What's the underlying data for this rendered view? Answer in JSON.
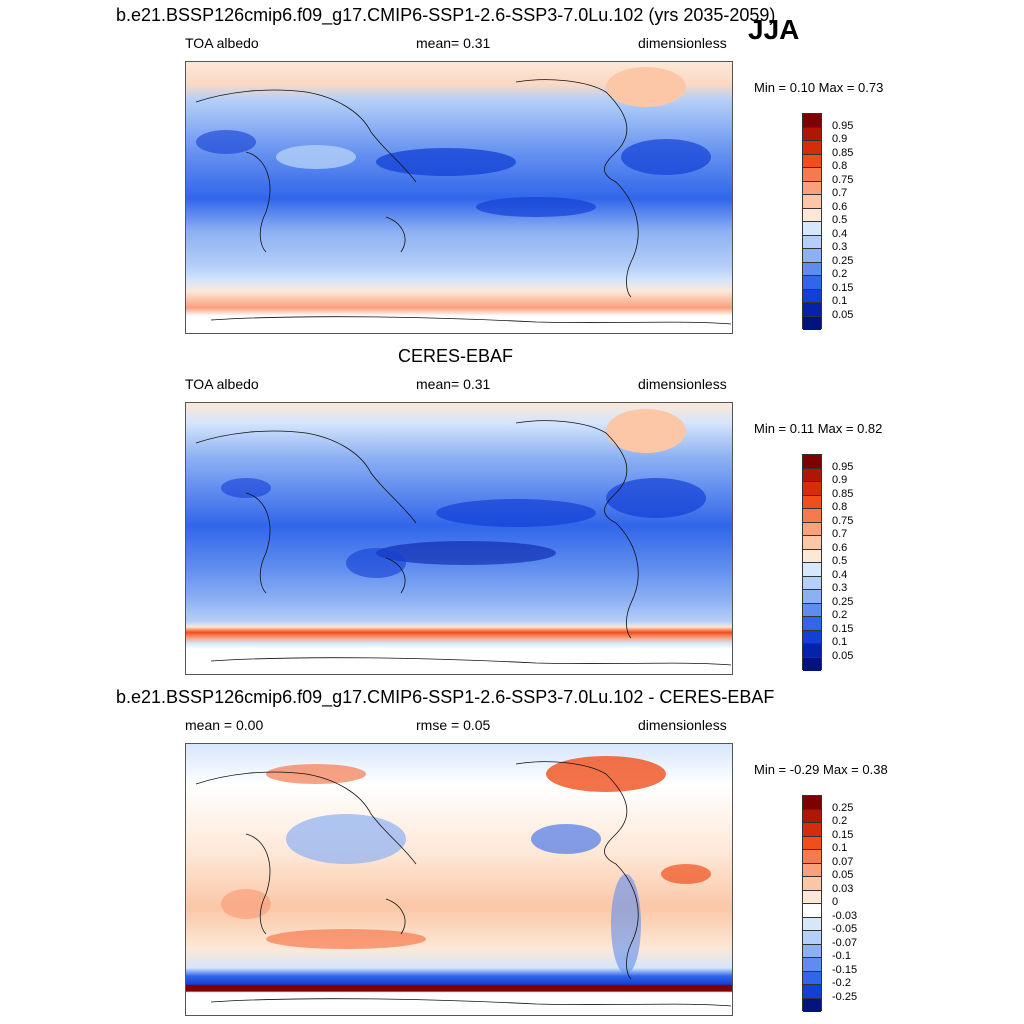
{
  "season": "JJA",
  "colorbar_abs": {
    "labels": [
      "0.95",
      "0.9",
      "0.85",
      "0.8",
      "0.75",
      "0.7",
      "0.6",
      "0.5",
      "0.4",
      "0.3",
      "0.25",
      "0.2",
      "0.15",
      "0.1",
      "0.05"
    ],
    "colors": [
      "#7f0000",
      "#b01605",
      "#d52c0c",
      "#f04f1c",
      "#f57a4e",
      "#f9a07c",
      "#fbc7a7",
      "#fde8d7",
      "#d6e6fb",
      "#b4cff8",
      "#8db0f3",
      "#5f8def",
      "#3166ea",
      "#1240d6",
      "#0722aa",
      "#001480"
    ]
  },
  "colorbar_diff": {
    "labels": [
      "0.25",
      "0.2",
      "0.15",
      "0.1",
      "0.07",
      "0.05",
      "0.03",
      "0",
      "-0.03",
      "-0.05",
      "-0.07",
      "-0.1",
      "-0.15",
      "-0.2",
      "-0.25"
    ],
    "colors": [
      "#7f0000",
      "#b01605",
      "#d52c0c",
      "#f04f1c",
      "#f57a4e",
      "#f9a07c",
      "#fbc7a7",
      "#fde8d7",
      "#ffffff",
      "#d6e6fb",
      "#b4cff8",
      "#8db0f3",
      "#5f8def",
      "#3166ea",
      "#1240d6",
      "#001480"
    ]
  },
  "panels": [
    {
      "title": "b.e21.BSSP126cmip6.f09_g17.CMIP6-SSP1-2.6-SSP3-7.0Lu.102 (yrs 2035-2059)",
      "left_label": "TOA albedo",
      "center_label": "mean=   0.31",
      "right_label": "dimensionless",
      "minmax": "Min =   0.10 Max =   0.73"
    },
    {
      "title": "CERES-EBAF",
      "left_label": "TOA albedo",
      "center_label": "mean=   0.31",
      "right_label": "dimensionless",
      "minmax": "Min =   0.11 Max =   0.82"
    },
    {
      "title": "b.e21.BSSP126cmip6.f09_g17.CMIP6-SSP1-2.6-SSP3-7.0Lu.102 - CERES-EBAF",
      "left_label": "mean =   0.00",
      "center_label": "rmse =   0.05",
      "right_label": "dimensionless",
      "minmax": "Min =  -0.29 Max =   0.38"
    }
  ]
}
